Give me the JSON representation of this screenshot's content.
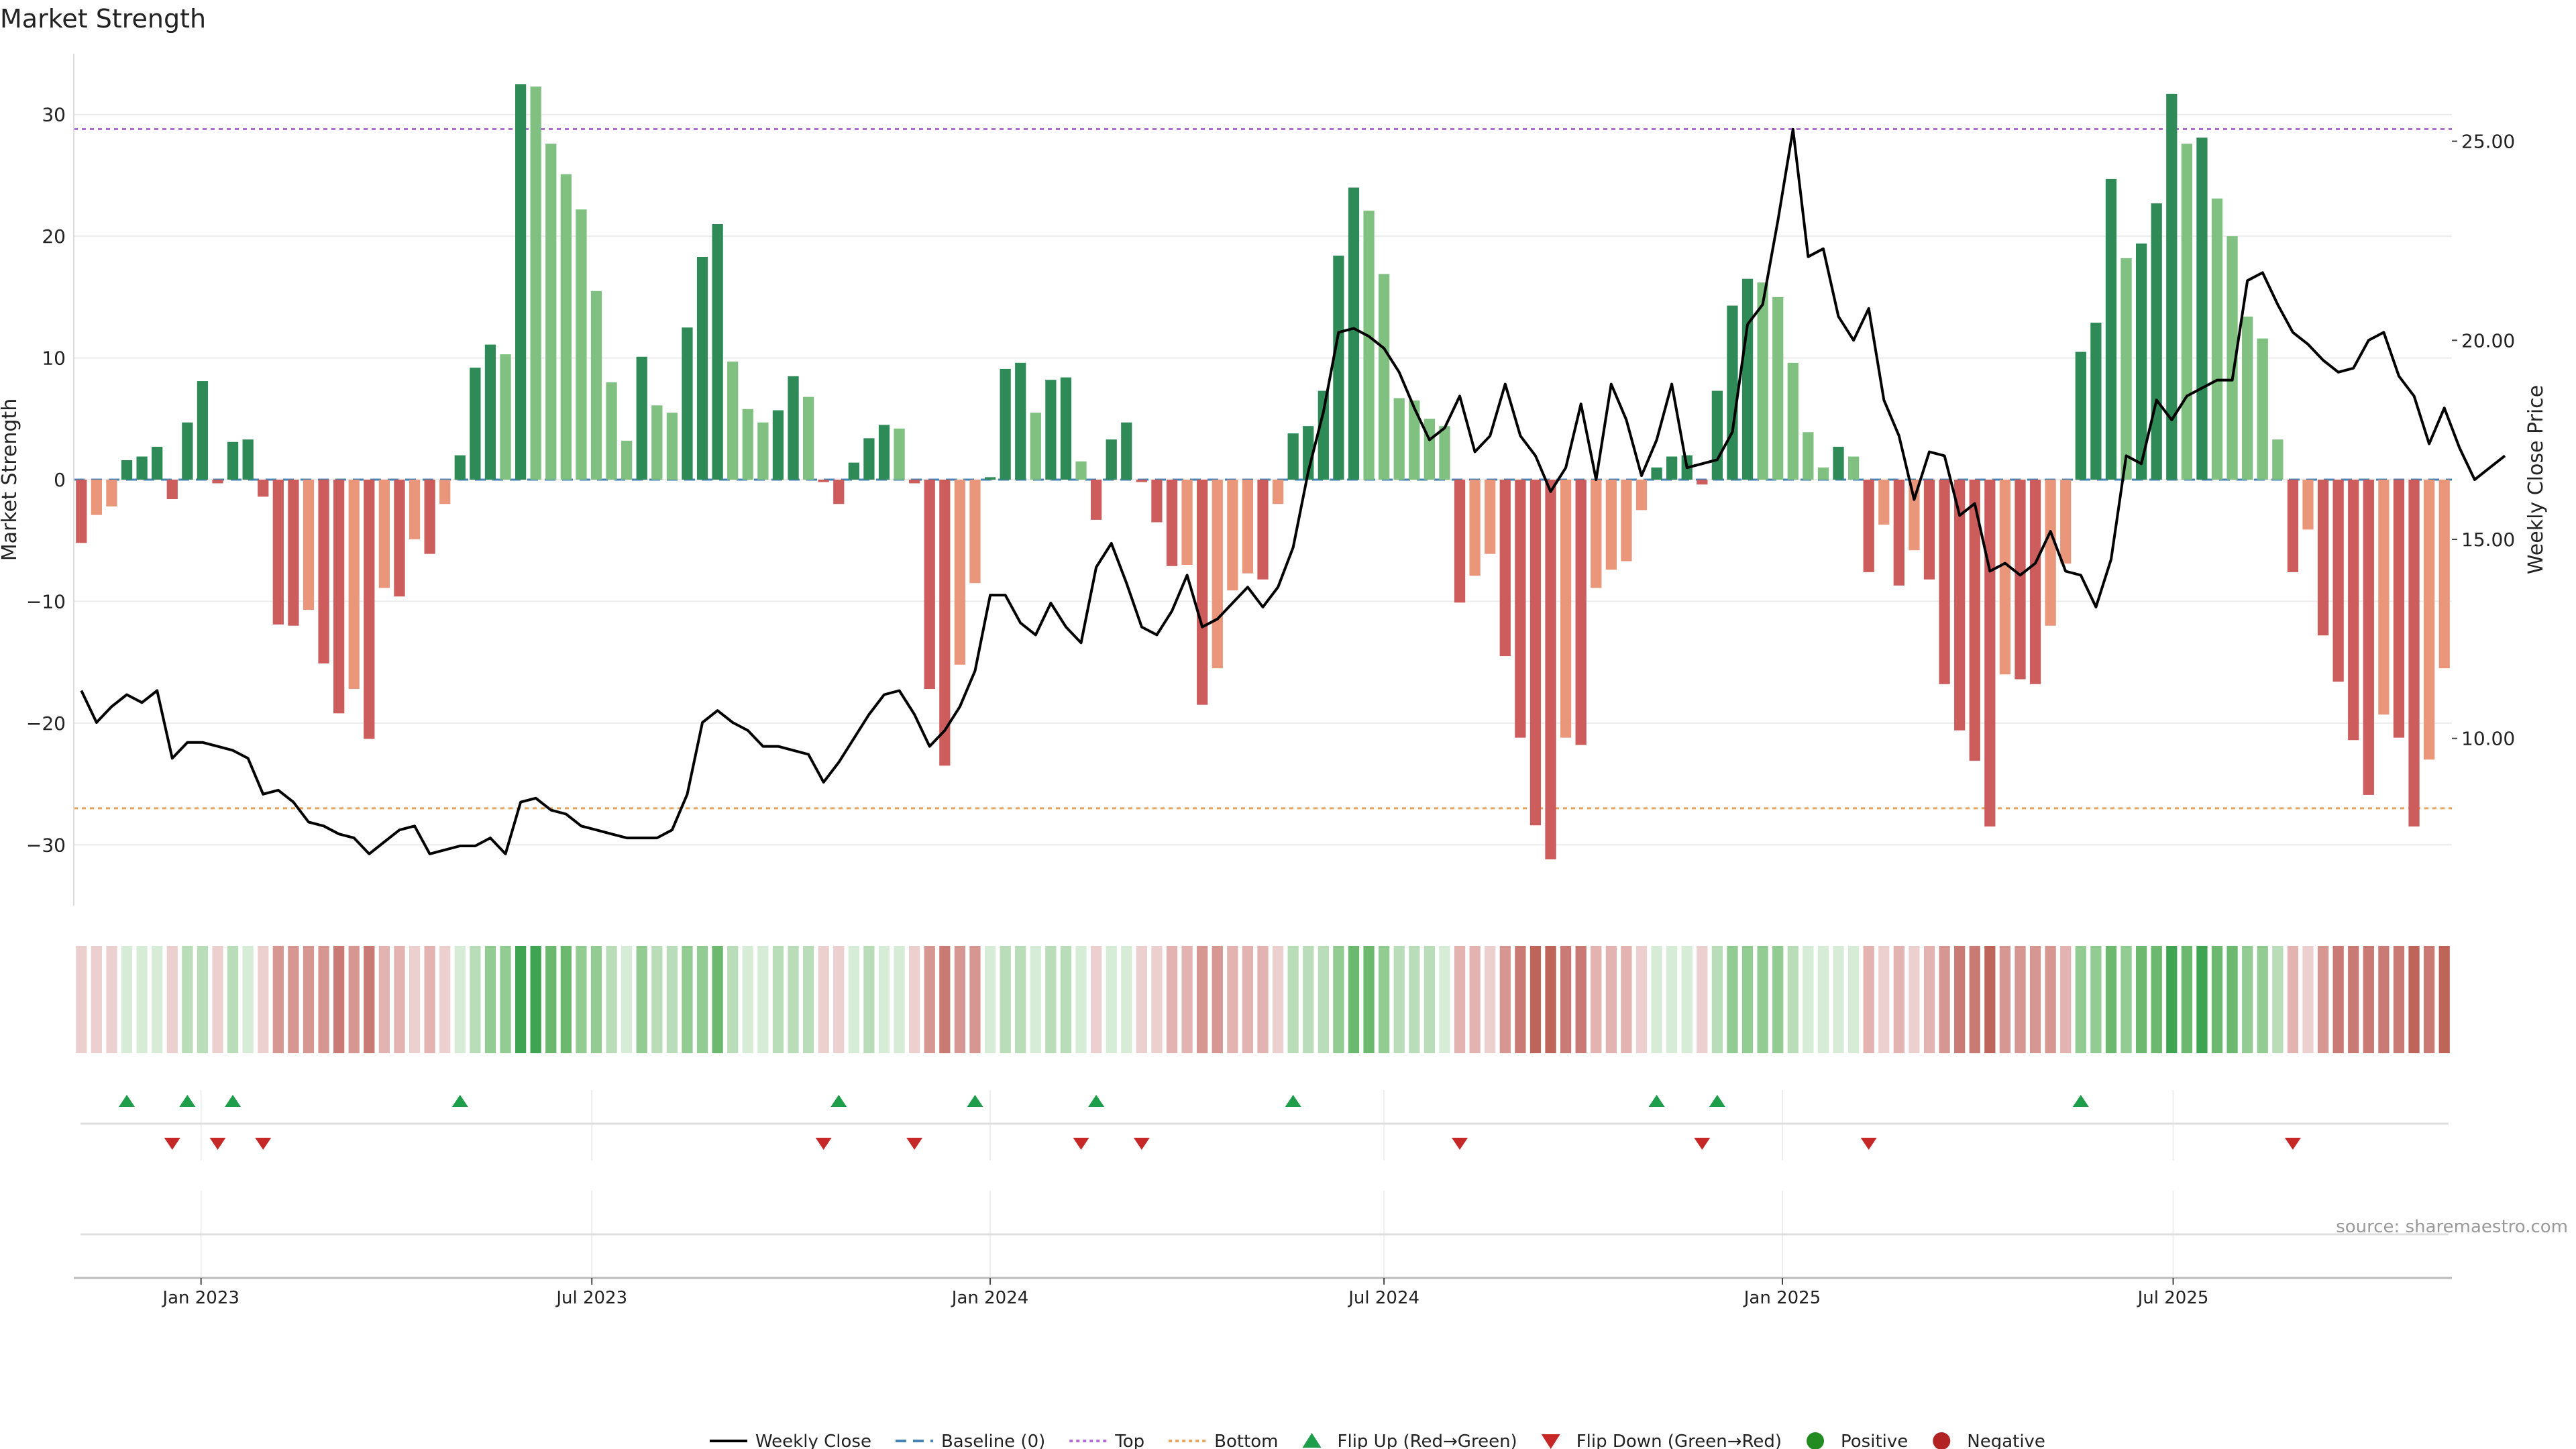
{
  "title": "Market Strength",
  "source": "source: sharemaestro.com",
  "chart_data": {
    "type": "bar",
    "title": "Market Strength",
    "ylabel": "Market Strength",
    "y2label": "Weekly Close Price",
    "ylim": [
      -35,
      35
    ],
    "y2lim": [
      5.8,
      27.2
    ],
    "yticks": [
      -30,
      -20,
      -10,
      0,
      10,
      20,
      30
    ],
    "ytick_labels": [
      "−30",
      "−20",
      "−10",
      "0",
      "10",
      "20",
      "30"
    ],
    "y2ticks": [
      10,
      15,
      20,
      25
    ],
    "y2tick_labels": [
      "10.00",
      "15.00",
      "20.00",
      "25.00"
    ],
    "xtick_labels": [
      "Jan 2023",
      "Jul 2023",
      "Jan 2024",
      "Jul 2024",
      "Jan 2025",
      "Jul 2025"
    ],
    "xtick_weeks": [
      7.9,
      33.7,
      60.0,
      86.0,
      112.3,
      138.1
    ],
    "top_line": 28.8,
    "bottom_line": -27.0,
    "baseline": 0,
    "strength": [
      -5.2,
      -2.9,
      -2.2,
      1.6,
      1.9,
      2.7,
      -1.6,
      4.7,
      8.1,
      -0.3,
      3.1,
      3.3,
      -1.4,
      -11.9,
      -12.0,
      -10.7,
      -15.1,
      -19.2,
      -17.2,
      -21.3,
      -8.9,
      -9.6,
      -4.9,
      -6.1,
      -2.0,
      2.0,
      9.2,
      11.1,
      10.3,
      32.5,
      32.3,
      27.6,
      25.1,
      22.2,
      15.5,
      8.0,
      3.2,
      10.1,
      6.1,
      5.5,
      12.5,
      18.3,
      21.0,
      9.7,
      5.8,
      4.7,
      5.7,
      8.5,
      6.8,
      -0.2,
      -2.0,
      1.4,
      3.4,
      4.5,
      4.2,
      -0.3,
      -17.2,
      -23.5,
      -15.2,
      -8.5,
      0.2,
      9.1,
      9.6,
      5.5,
      8.2,
      8.4,
      1.5,
      -3.3,
      3.3,
      4.7,
      -0.2,
      -3.5,
      -7.1,
      -7.0,
      -18.5,
      -15.5,
      -9.1,
      -7.7,
      -8.2,
      -2.0,
      3.8,
      4.4,
      7.3,
      18.4,
      24.0,
      22.1,
      16.9,
      6.7,
      6.5,
      5.0,
      4.4,
      -10.1,
      -7.9,
      -6.1,
      -14.5,
      -21.2,
      -28.4,
      -31.2,
      -21.2,
      -21.8,
      -8.9,
      -7.4,
      -6.7,
      -2.5,
      1.0,
      1.9,
      2.0,
      -0.4,
      7.3,
      14.3,
      16.5,
      16.2,
      15.0,
      9.6,
      3.9,
      1.0,
      2.7,
      1.9,
      -7.6,
      -3.7,
      -8.7,
      -5.8,
      -8.2,
      -16.8,
      -20.6,
      -23.1,
      -28.5,
      -16.0,
      -16.4,
      -16.8,
      -12.0,
      -6.9,
      10.5,
      12.9,
      24.7,
      18.2,
      19.4,
      22.7,
      31.7,
      27.6,
      28.1,
      23.1,
      20.0,
      13.4,
      11.6,
      3.3,
      -7.6,
      -4.1,
      -12.8,
      -16.6,
      -21.4,
      -25.9,
      -19.3,
      -21.2,
      -28.5,
      -23.0,
      -15.5
    ],
    "weekly_close": [
      11.2,
      10.4,
      10.8,
      11.1,
      10.9,
      11.2,
      9.5,
      9.9,
      9.9,
      9.8,
      9.7,
      9.5,
      8.6,
      8.7,
      8.4,
      7.9,
      7.8,
      7.6,
      7.5,
      7.1,
      7.4,
      7.7,
      7.8,
      7.1,
      7.2,
      7.3,
      7.3,
      7.5,
      7.1,
      8.4,
      8.5,
      8.2,
      8.1,
      7.8,
      7.7,
      7.6,
      7.5,
      7.5,
      7.5,
      7.7,
      8.6,
      10.4,
      10.7,
      10.4,
      10.2,
      9.8,
      9.8,
      9.7,
      9.6,
      8.9,
      9.4,
      10.0,
      10.6,
      11.1,
      11.2,
      10.6,
      9.8,
      10.2,
      10.8,
      11.7,
      13.6,
      13.6,
      12.9,
      12.6,
      13.4,
      12.8,
      12.4,
      14.3,
      14.9,
      13.9,
      12.8,
      12.6,
      13.2,
      14.1,
      12.8,
      13.0,
      13.4,
      13.8,
      13.3,
      13.8,
      14.8,
      16.7,
      18.2,
      20.2,
      20.3,
      20.1,
      19.8,
      19.2,
      18.3,
      17.5,
      17.8,
      18.6,
      17.2,
      17.6,
      18.9,
      17.6,
      17.1,
      16.2,
      16.8,
      18.4,
      16.5,
      18.9,
      18.0,
      16.6,
      17.5,
      18.9,
      16.8,
      16.9,
      17.0,
      17.7,
      20.4,
      20.9,
      23.0,
      25.3,
      22.1,
      22.3,
      20.6,
      20.0,
      20.8,
      18.5,
      17.6,
      16.0,
      17.2,
      17.1,
      15.6,
      15.9,
      14.2,
      14.4,
      14.1,
      14.4,
      15.2,
      14.2,
      14.1,
      13.3,
      14.5,
      17.1,
      16.9,
      18.5,
      18.0,
      18.6,
      18.8,
      19.0,
      19.0,
      21.5,
      21.7,
      20.9,
      20.2,
      19.9,
      19.5,
      19.2,
      19.3,
      20.0,
      20.2,
      19.1,
      18.6,
      17.4,
      18.3,
      17.3,
      16.5,
      16.8,
      17.1
    ],
    "heat_levels": [
      1,
      1,
      1,
      1,
      1,
      1,
      1,
      2,
      2,
      1,
      2,
      1,
      1,
      3,
      3,
      3,
      3,
      4,
      3,
      4,
      2,
      2,
      1,
      2,
      1,
      1,
      2,
      3,
      3,
      5,
      5,
      4,
      4,
      3,
      3,
      2,
      1,
      3,
      2,
      2,
      3,
      3,
      4,
      2,
      1,
      1,
      2,
      2,
      2,
      1,
      1,
      1,
      2,
      1,
      1,
      1,
      3,
      4,
      3,
      3,
      1,
      2,
      2,
      1,
      2,
      2,
      1,
      1,
      1,
      1,
      1,
      1,
      2,
      2,
      3,
      3,
      2,
      2,
      2,
      1,
      2,
      2,
      2,
      3,
      4,
      4,
      3,
      2,
      2,
      2,
      1,
      2,
      2,
      1,
      3,
      4,
      5,
      5,
      4,
      4,
      2,
      2,
      2,
      1,
      1,
      1,
      1,
      1,
      2,
      3,
      3,
      3,
      3,
      2,
      1,
      1,
      1,
      1,
      2,
      1,
      2,
      1,
      2,
      3,
      4,
      4,
      5,
      3,
      3,
      3,
      3,
      2,
      3,
      3,
      4,
      3,
      4,
      4,
      5,
      4,
      5,
      4,
      4,
      3,
      3,
      2,
      2,
      1,
      3,
      4,
      4,
      4,
      4,
      4,
      5,
      4,
      5
    ],
    "flip_up_weeks": [
      3,
      7,
      10,
      25,
      50,
      59,
      67,
      80,
      104,
      108,
      132
    ],
    "flip_down_weeks": [
      6,
      9,
      12,
      49,
      55,
      66,
      70,
      91,
      107,
      118,
      146
    ],
    "legend": [
      "Weekly Close",
      "Baseline (0)",
      "Top",
      "Bottom",
      "Flip Up (Red→Green)",
      "Flip Down (Green→Red)",
      "Positive",
      "Negative"
    ],
    "legend_placement": "bottom-center",
    "colors": {
      "pos_dark": "#2e8b57",
      "pos_light": "#80c080",
      "neg_dark": "#cd5c5c",
      "neg_light": "#e9967a",
      "price_line": "#000000",
      "baseline": "#4682b4",
      "top": "#b36bd6",
      "bottom": "#e8a45c",
      "flip_up": "#1e9e4a",
      "flip_down": "#c62828",
      "positive_dot": "#228b22",
      "negative_dot": "#b22222"
    }
  }
}
